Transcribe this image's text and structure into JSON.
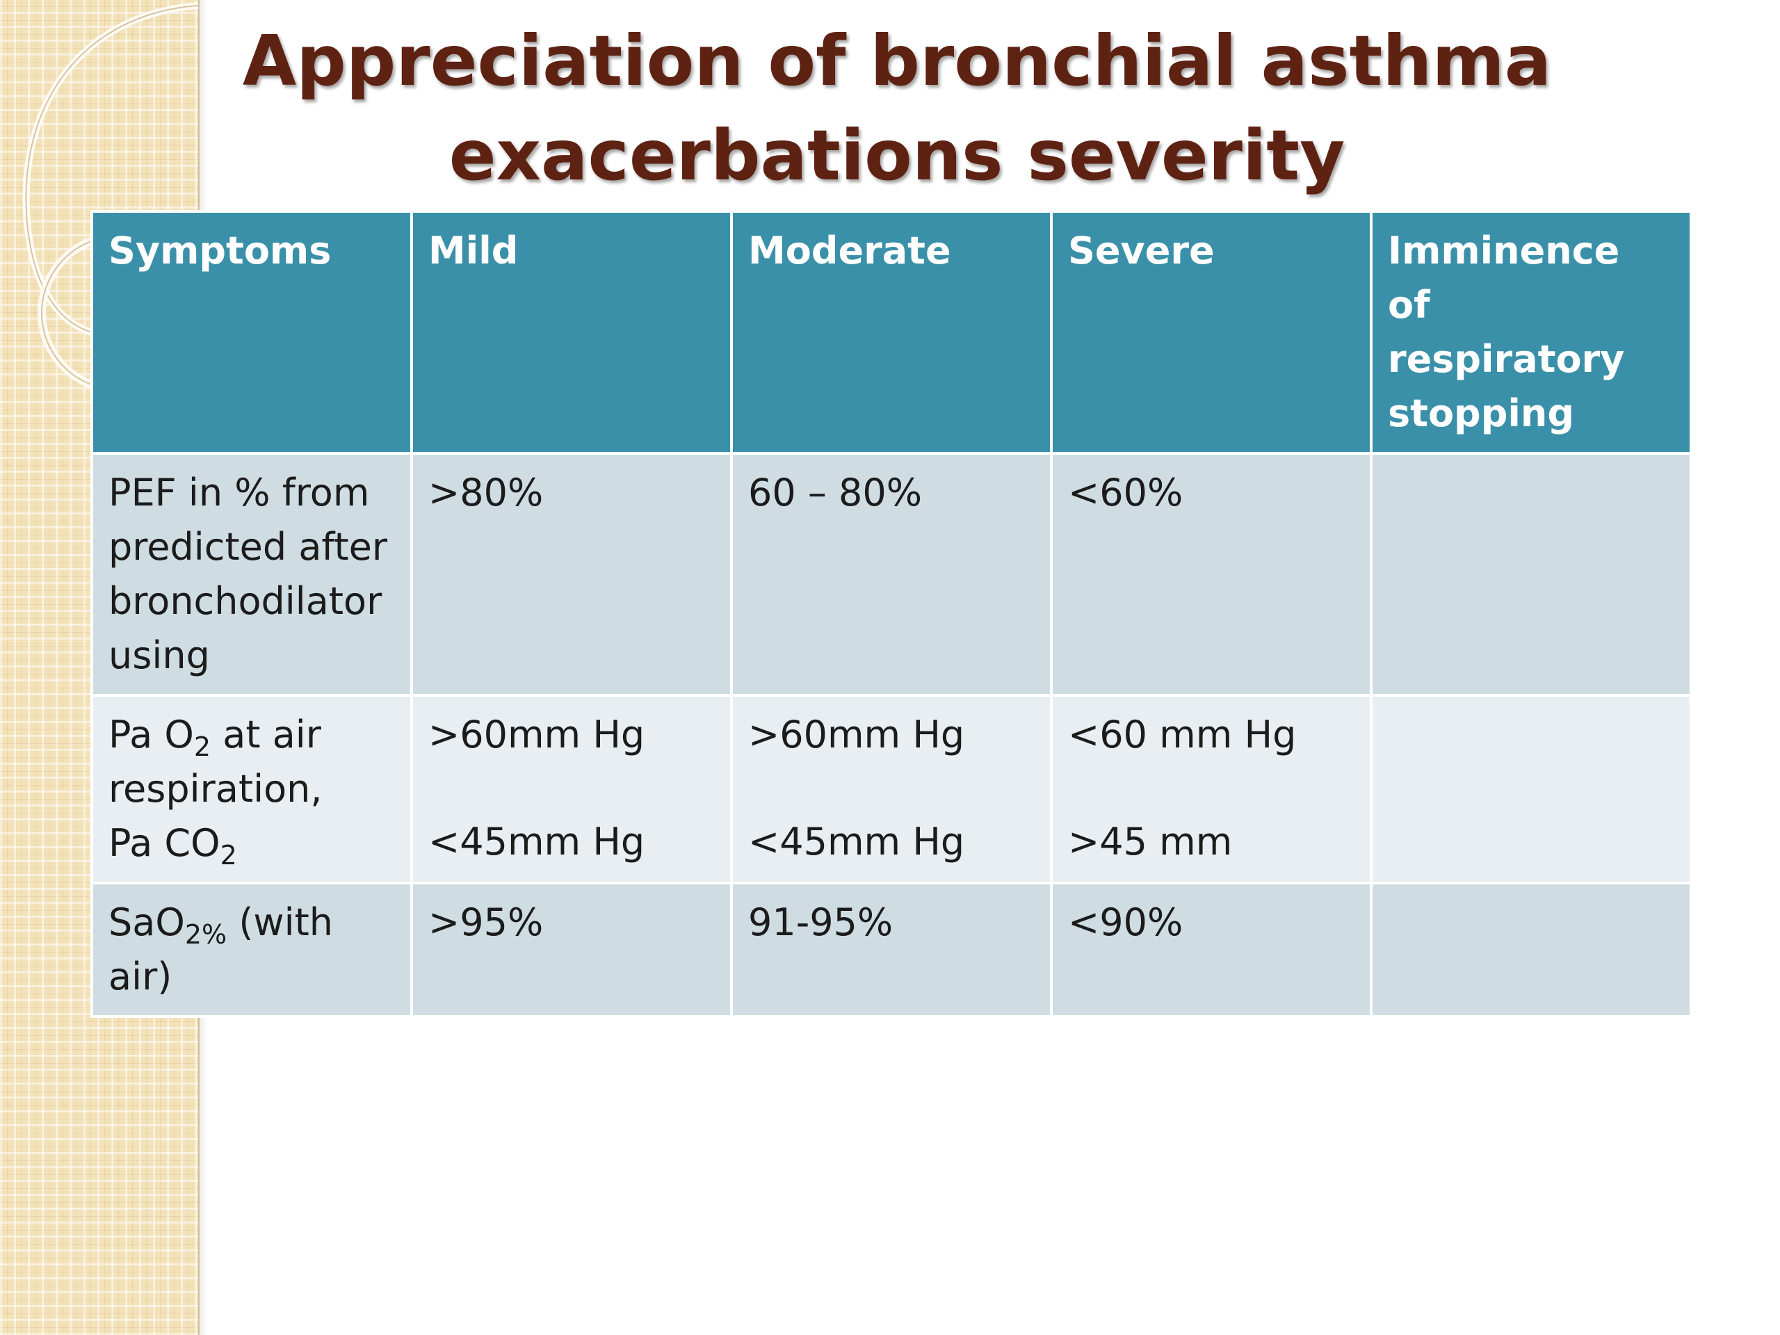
{
  "slide": {
    "title_line1": "Appreciation of bronchial asthma",
    "title_line2": "exacerbations severity"
  },
  "table": {
    "headers": [
      "Symptoms",
      "Mild",
      "Moderate",
      "Severe",
      "Imminence of respiratory stopping"
    ],
    "rows": [
      {
        "symptom": "PEF in % from predicted after bronchodilator using",
        "mild": ">80%",
        "moderate": "60 – 80%",
        "severe": "<60%",
        "imminence": ""
      },
      {
        "symptom_pao2_prefix": "Pa O",
        "symptom_pao2_sub": "2",
        "symptom_pao2_suffix": " at air respiration,",
        "symptom_paco2_prefix": "Pa CO",
        "symptom_paco2_sub": "2",
        "mild_pao2": ">60mm Hg",
        "mild_paco2": "<45mm Hg",
        "moderate_pao2": ">60mm Hg",
        "moderate_paco2": "<45mm Hg",
        "severe_pao2": "<60 mm Hg",
        "severe_paco2": ">45 mm",
        "imminence": ""
      },
      {
        "symptom_prefix": "SaO",
        "symptom_sub": "2%",
        "symptom_suffix": " (with air)",
        "mild": ">95%",
        "moderate": "91-95%",
        "severe": "<90%",
        "imminence": ""
      }
    ]
  },
  "colors": {
    "header_bg": "#3a90a8",
    "row_dark_bg": "#cfdde3",
    "row_light_bg": "#e8eef1",
    "title_color": "#5e2212",
    "strip_color": "#f3e2b8"
  }
}
